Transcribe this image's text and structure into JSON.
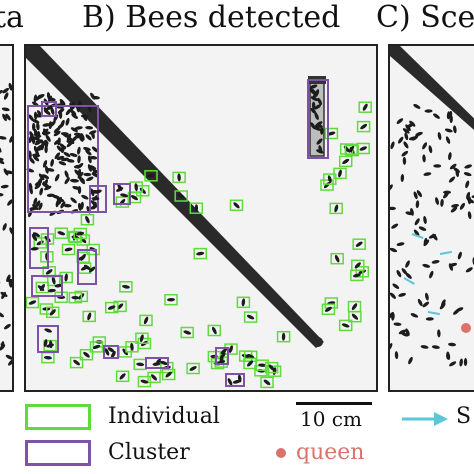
{
  "headings": {
    "left": "ta",
    "center": "B) Bees detected",
    "right": "C) Scen"
  },
  "legend": {
    "individual_label": "Individual",
    "cluster_label": "Cluster",
    "queen_label": "queen",
    "scalebar_label": "10 cm",
    "right_label": "S"
  },
  "icons": {
    "arrow": "arrow-right-icon",
    "queen": "queen-dot-icon"
  },
  "colors": {
    "individual_box": "#5fdc3c",
    "cluster_box": "#7d52a8",
    "queen": "#d9736c",
    "arrow": "#5bc8d8",
    "bee": "#1c1c1c",
    "panel_bg": "#f3f3f3"
  }
}
